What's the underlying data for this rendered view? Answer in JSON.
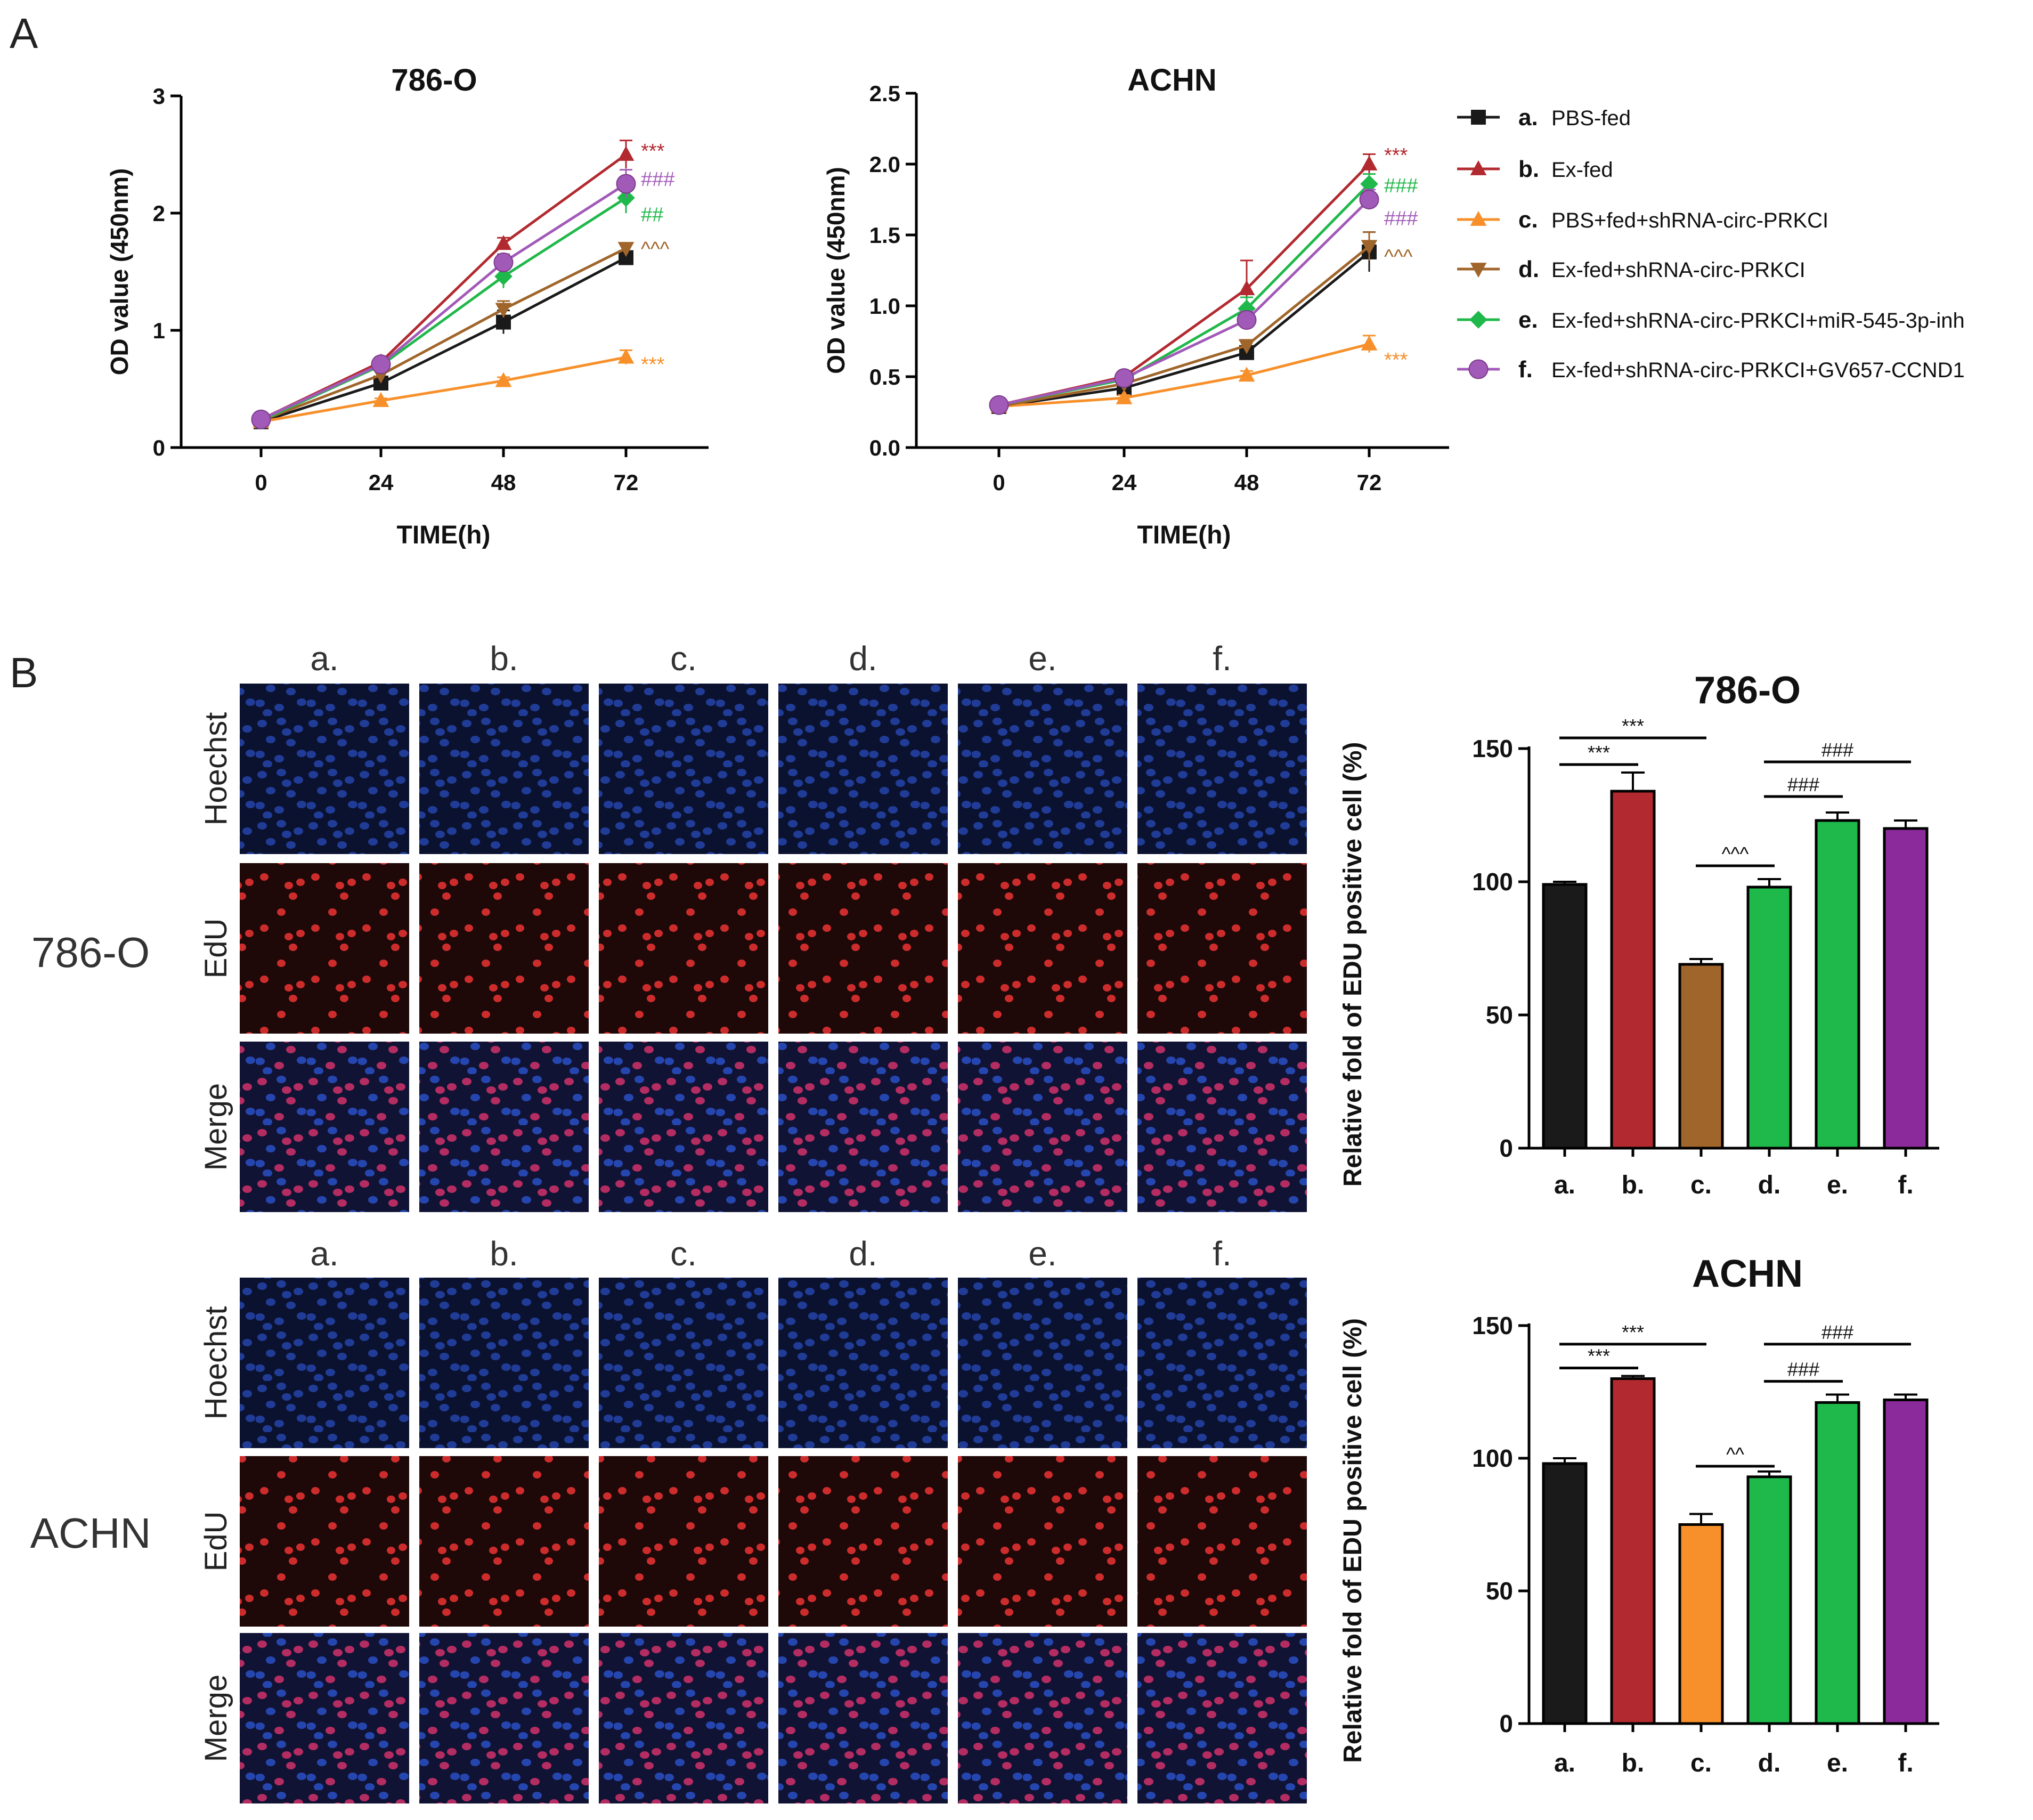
{
  "panel_labels": {
    "a": "A",
    "b": "B"
  },
  "legend": [
    {
      "key": "a.",
      "label": "PBS-fed",
      "color": "#1a1a1a",
      "marker": "square"
    },
    {
      "key": "b.",
      "label": "Ex-fed",
      "color": "#b22a2f",
      "marker": "triangle-up"
    },
    {
      "key": "c.",
      "label": "PBS+fed+shRNA-circ-PRKCI",
      "color": "#f7902a",
      "marker": "triangle-up"
    },
    {
      "key": "d.",
      "label": "Ex-fed+shRNA-circ-PRKCI",
      "color": "#a0652a",
      "marker": "triangle-down"
    },
    {
      "key": "e.",
      "label": "Ex-fed+shRNA-circ-PRKCI+miR-545-3p-inh",
      "color": "#1fb84a",
      "marker": "diamond"
    },
    {
      "key": "f.",
      "label": "Ex-fed+shRNA-circ-PRKCI+GV657-CCND1",
      "color": "#a25ab8",
      "marker": "circle"
    }
  ],
  "image_grid": {
    "column_labels": [
      "a.",
      "b.",
      "c.",
      "d.",
      "e.",
      "f."
    ],
    "row_labels": [
      "Hoechst",
      "EdU",
      "Merge"
    ],
    "cell_lines": [
      "786-O",
      "ACHN"
    ]
  },
  "chart_data": [
    {
      "type": "line",
      "title": "786-O",
      "xlabel": "TIME(h)",
      "ylabel": "OD value (450nm)",
      "x": [
        0,
        24,
        48,
        72
      ],
      "xticks": [
        "0",
        "24",
        "48",
        "72"
      ],
      "ylim": [
        0,
        3
      ],
      "yticks": [
        "0",
        "1",
        "2",
        "3"
      ],
      "series": [
        {
          "name": "a. PBS-fed",
          "values": [
            0.22,
            0.55,
            1.07,
            1.62
          ],
          "err": [
            0.02,
            0.03,
            0.1,
            0.04
          ],
          "sig": ""
        },
        {
          "name": "b. Ex-fed",
          "values": [
            0.24,
            0.73,
            1.74,
            2.5
          ],
          "err": [
            0.02,
            0.04,
            0.05,
            0.12
          ],
          "sig": "***"
        },
        {
          "name": "c. PBS+fed+shRNA-circ-PRKCI",
          "values": [
            0.22,
            0.4,
            0.57,
            0.77
          ],
          "err": [
            0.02,
            0.02,
            0.03,
            0.06
          ],
          "sig": "***"
        },
        {
          "name": "d. Ex-fed+shRNA-circ-PRKCI",
          "values": [
            0.23,
            0.62,
            1.18,
            1.7
          ],
          "err": [
            0.02,
            0.03,
            0.07,
            0.04
          ],
          "sig": "^^^"
        },
        {
          "name": "e. Ex-fed+shRNA-circ-PRKCI+miR-545-3p-inh",
          "values": [
            0.23,
            0.7,
            1.46,
            2.13
          ],
          "err": [
            0.02,
            0.03,
            0.1,
            0.13
          ],
          "sig": "##"
        },
        {
          "name": "f. Ex-fed+shRNA-circ-PRKCI+GV657-CCND1",
          "values": [
            0.24,
            0.71,
            1.58,
            2.25
          ],
          "err": [
            0.02,
            0.03,
            0.07,
            0.12
          ],
          "sig": "###"
        }
      ]
    },
    {
      "type": "line",
      "title": "ACHN",
      "xlabel": "TIME(h)",
      "ylabel": "OD value (450nm)",
      "x": [
        0,
        24,
        48,
        72
      ],
      "xticks": [
        "0",
        "24",
        "48",
        "72"
      ],
      "ylim": [
        0,
        2.5
      ],
      "yticks": [
        "0.0",
        "0.5",
        "1.0",
        "1.5",
        "2.0",
        "2.5"
      ],
      "series": [
        {
          "name": "a. PBS-fed",
          "values": [
            0.29,
            0.42,
            0.67,
            1.38
          ],
          "err": [
            0.02,
            0.03,
            0.04,
            0.14
          ],
          "sig": ""
        },
        {
          "name": "b. Ex-fed",
          "values": [
            0.3,
            0.5,
            1.12,
            2.0
          ],
          "err": [
            0.02,
            0.04,
            0.2,
            0.07
          ],
          "sig": "***"
        },
        {
          "name": "c. PBS+fed+shRNA-circ-PRKCI",
          "values": [
            0.29,
            0.35,
            0.51,
            0.73
          ],
          "err": [
            0.02,
            0.02,
            0.03,
            0.06
          ],
          "sig": "***"
        },
        {
          "name": "d. Ex-fed+shRNA-circ-PRKCI",
          "values": [
            0.29,
            0.45,
            0.72,
            1.42
          ],
          "err": [
            0.02,
            0.03,
            0.04,
            0.1
          ],
          "sig": "^^^"
        },
        {
          "name": "e. Ex-fed+shRNA-circ-PRKCI+miR-545-3p-inh",
          "values": [
            0.3,
            0.48,
            0.98,
            1.86
          ],
          "err": [
            0.02,
            0.03,
            0.08,
            0.07
          ],
          "sig": "###"
        },
        {
          "name": "f. Ex-fed+shRNA-circ-PRKCI+GV657-CCND1",
          "values": [
            0.3,
            0.49,
            0.9,
            1.75
          ],
          "err": [
            0.02,
            0.03,
            0.06,
            0.07
          ],
          "sig": "###"
        }
      ]
    },
    {
      "type": "bar",
      "title": "786-O",
      "xlabel": "",
      "ylabel": "Relative fold of EDU positive cell (%)",
      "categories": [
        "a.",
        "b.",
        "c.",
        "d.",
        "e.",
        "f."
      ],
      "values": [
        99,
        134,
        69,
        98,
        123,
        120
      ],
      "err": [
        1,
        7,
        2,
        3,
        3,
        3
      ],
      "colors": [
        "#1a1a1a",
        "#b22a2f",
        "#a0652a",
        "#1fb84a",
        "#1fb84a",
        "#8b2a9a"
      ],
      "ylim": [
        0,
        150
      ],
      "yticks": [
        "0",
        "50",
        "100",
        "150"
      ],
      "comparisons": [
        {
          "from": 0,
          "to": 1,
          "y": 144,
          "label": "***"
        },
        {
          "from": 0,
          "to": 2,
          "y": 154,
          "label": "***"
        },
        {
          "from": 2,
          "to": 3,
          "y": 106,
          "label": "^^^"
        },
        {
          "from": 3,
          "to": 4,
          "y": 132,
          "label": "###"
        },
        {
          "from": 3,
          "to": 5,
          "y": 145,
          "label": "###"
        }
      ]
    },
    {
      "type": "bar",
      "title": "ACHN",
      "xlabel": "",
      "ylabel": "Relative fold of EDU positive cell (%)",
      "categories": [
        "a.",
        "b.",
        "c.",
        "d.",
        "e.",
        "f."
      ],
      "values": [
        98,
        130,
        75,
        93,
        121,
        122
      ],
      "err": [
        2,
        1,
        4,
        2,
        3,
        2
      ],
      "colors": [
        "#1a1a1a",
        "#b22a2f",
        "#f7902a",
        "#1fb84a",
        "#1fb84a",
        "#8b2a9a"
      ],
      "ylim": [
        0,
        150
      ],
      "yticks": [
        "0",
        "50",
        "100",
        "150"
      ],
      "comparisons": [
        {
          "from": 0,
          "to": 1,
          "y": 134,
          "label": "***"
        },
        {
          "from": 0,
          "to": 2,
          "y": 143,
          "label": "***"
        },
        {
          "from": 2,
          "to": 3,
          "y": 97,
          "label": "^^"
        },
        {
          "from": 3,
          "to": 4,
          "y": 129,
          "label": "###"
        },
        {
          "from": 3,
          "to": 5,
          "y": 143,
          "label": "###"
        }
      ]
    }
  ]
}
